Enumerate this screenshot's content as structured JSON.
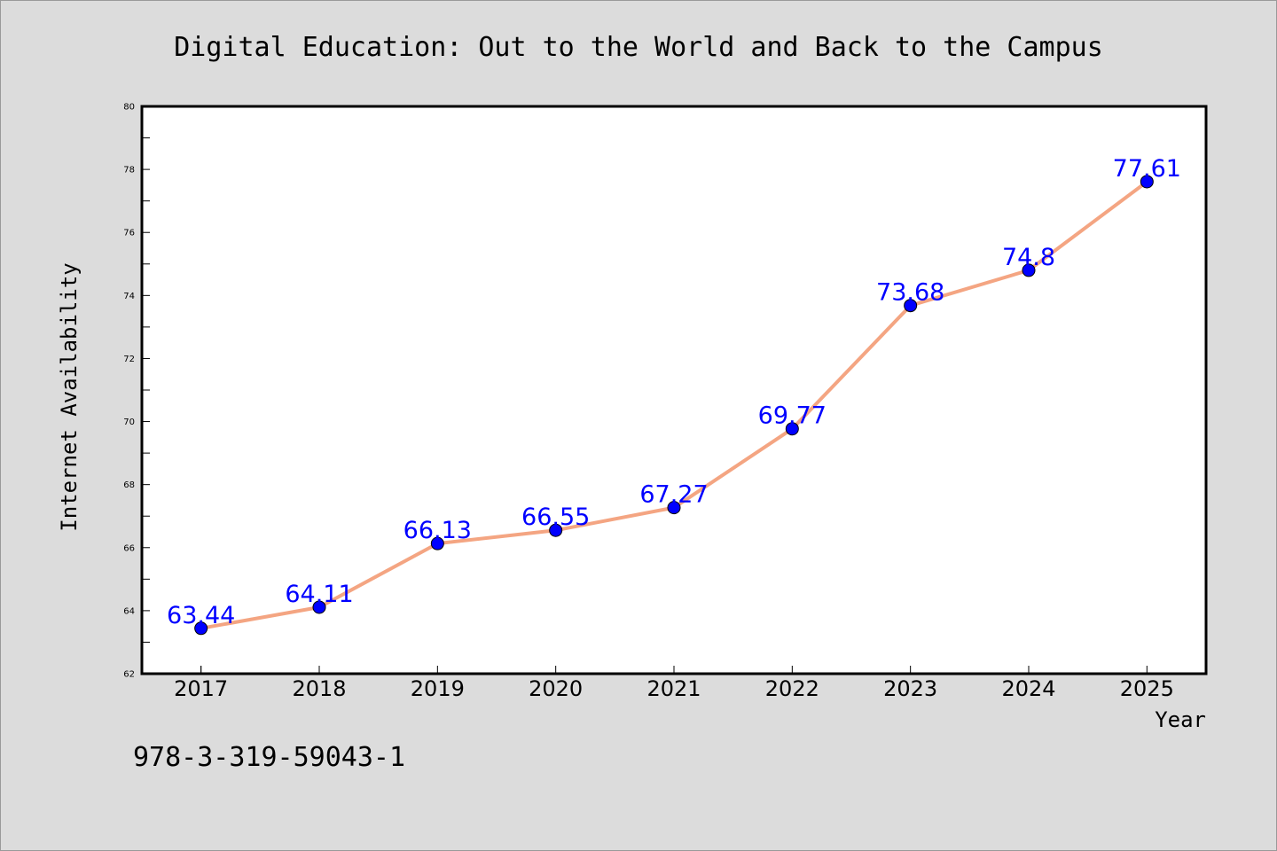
{
  "chart_data": {
    "type": "line",
    "title": "Digital Education: Out to the World and Back to the Campus",
    "xlabel": "Year",
    "ylabel": "Internet Availability",
    "x": [
      2017,
      2018,
      2019,
      2020,
      2021,
      2022,
      2023,
      2024,
      2025
    ],
    "series": [
      {
        "values": [
          63.44,
          64.11,
          66.13,
          66.55,
          67.27,
          69.77,
          73.68,
          74.8,
          77.61
        ],
        "data_labels": [
          "63.44",
          "64.11",
          "66.13",
          "66.55",
          "67.27",
          "69.77",
          "73.68",
          "74.8",
          "77.61"
        ]
      }
    ],
    "xlim": [
      2016.5,
      2025.5
    ],
    "ylim": [
      62,
      80
    ],
    "yticks": [
      62,
      64,
      66,
      68,
      70,
      72,
      74,
      76,
      78,
      80
    ],
    "grid": false,
    "legend": "none",
    "colors": {
      "background": "#dcdcdc",
      "plot_area": "#ffffff",
      "line": "#f4a582",
      "marker": "#0000ff",
      "data_label": "#0000ff"
    }
  },
  "footnote": "978-3-319-59043-1"
}
